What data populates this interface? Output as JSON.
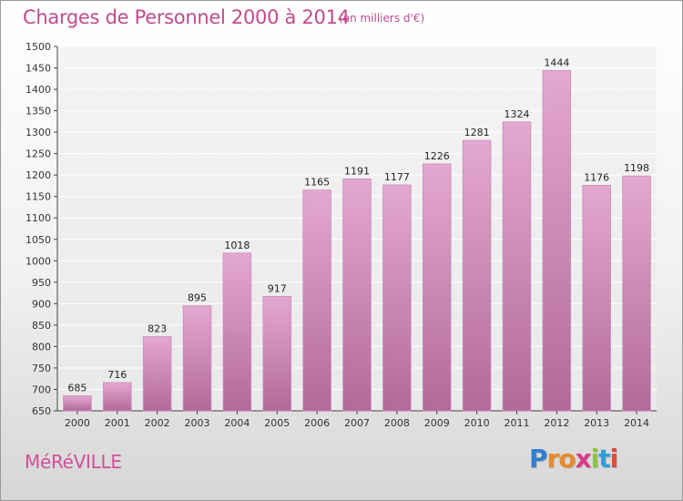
{
  "header": {
    "title": "Charges de Personnel 2000 à 2014",
    "subtitle": "(en milliers d'€)"
  },
  "footer": {
    "commune": "MéRéVILLE",
    "brand": "Proxiti",
    "brand_letters": [
      {
        "ch": "P",
        "color": "#2f7fd1"
      },
      {
        "ch": "r",
        "color": "#e8892b"
      },
      {
        "ch": "o",
        "color": "#e8892b"
      },
      {
        "ch": "x",
        "color": "#d63b8c"
      },
      {
        "ch": "i",
        "color": "#8cc63f"
      },
      {
        "ch": "t",
        "color": "#2f9fd9"
      },
      {
        "ch": "i",
        "color": "#e04a3a"
      }
    ]
  },
  "colors": {
    "bar_top": "#e4a8d0",
    "bar_bottom": "#b26a98",
    "grid": "#ffffff",
    "accent": "#c04b8e"
  },
  "chart_data": {
    "type": "bar",
    "title": "Charges de Personnel 2000 à 2014",
    "subtitle": "(en milliers d'€)",
    "categories": [
      "2000",
      "2001",
      "2002",
      "2003",
      "2004",
      "2005",
      "2006",
      "2007",
      "2008",
      "2009",
      "2010",
      "2011",
      "2012",
      "2013",
      "2014"
    ],
    "values": [
      685,
      716,
      823,
      895,
      1018,
      917,
      1165,
      1191,
      1177,
      1226,
      1281,
      1324,
      1444,
      1176,
      1198
    ],
    "ylim": [
      650,
      1500
    ],
    "yticks": [
      650,
      700,
      750,
      800,
      850,
      900,
      950,
      1000,
      1050,
      1100,
      1150,
      1200,
      1250,
      1300,
      1350,
      1400,
      1450,
      1500
    ],
    "grid": true,
    "xlabel": "",
    "ylabel": ""
  }
}
